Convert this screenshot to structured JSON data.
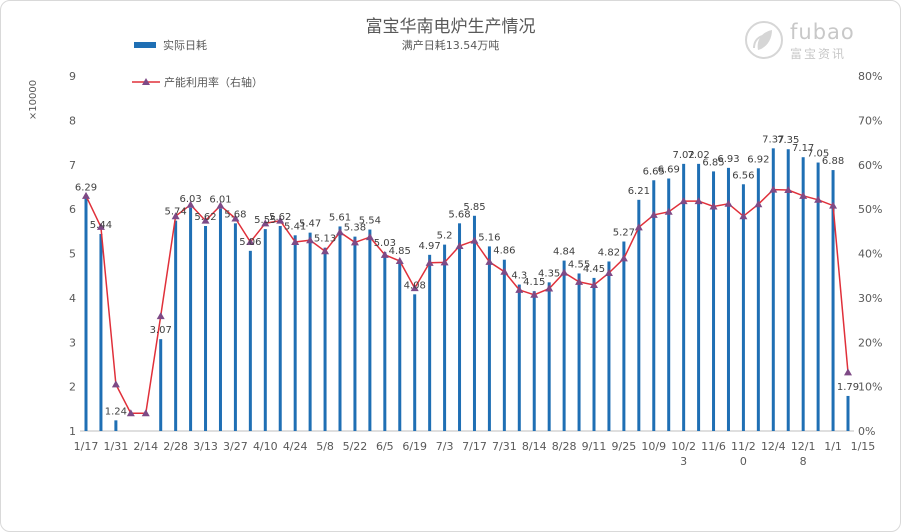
{
  "title": "富宝华南电炉生产情况",
  "subtitle": "满产日耗13.54万吨",
  "legend": {
    "bar": "实际日耗",
    "line": "产能利用率（右轴）"
  },
  "watermark": {
    "brand": "fubao",
    "cn": "富宝资讯"
  },
  "colors": {
    "bar": "#1f6fb4",
    "line": "#e0303a",
    "marker": "#7e4a86",
    "text": "#595959",
    "axis": "#bfbfbf"
  },
  "chart_data": {
    "type": "bar+line",
    "title": "富宝华南电炉生产情况",
    "subtitle": "满产日耗13.54万吨",
    "y_unit": "×10000",
    "y_left": {
      "ylim": [
        1,
        9
      ],
      "ticks": [
        "1",
        "2",
        "3",
        "4",
        "5",
        "6",
        "7",
        "8",
        "9"
      ]
    },
    "y_right": {
      "ylim": [
        0,
        80
      ],
      "ticks": [
        "0%",
        "10%",
        "20%",
        "30%",
        "40%",
        "50%",
        "60%",
        "70%",
        "80%"
      ]
    },
    "x_ticks": [
      "1/17",
      "1/31",
      "2/14",
      "2/28",
      "3/13",
      "3/27",
      "4/10",
      "4/24",
      "5/8",
      "5/22",
      "6/5",
      "6/19",
      "7/3",
      "7/17",
      "7/31",
      "8/14",
      "8/28",
      "9/11",
      "9/25",
      "10/9",
      "10/23",
      "11/6",
      "11/20",
      "12/4",
      "12/18",
      "1/1",
      "1/15"
    ],
    "legend_position": "top-left",
    "grid": false,
    "series": [
      {
        "name": "实际日耗",
        "type": "bar",
        "axis": "left",
        "values": [
          6.29,
          5.44,
          1.24,
          null,
          null,
          3.07,
          5.74,
          6.03,
          5.62,
          6.01,
          5.68,
          5.06,
          5.55,
          5.62,
          5.41,
          5.47,
          5.13,
          5.61,
          5.38,
          5.54,
          5.03,
          4.85,
          4.08,
          4.97,
          5.2,
          5.68,
          5.85,
          5.16,
          4.86,
          4.3,
          4.15,
          4.35,
          4.84,
          4.55,
          4.45,
          4.82,
          5.27,
          6.21,
          6.65,
          6.69,
          7.02,
          7.02,
          6.85,
          6.93,
          6.56,
          6.92,
          7.37,
          7.35,
          7.17,
          7.05,
          6.88,
          1.79
        ],
        "labels": [
          "6.29",
          "5.44",
          "1.24",
          "",
          "",
          "3.07",
          "5.74",
          "6.03",
          "5.62",
          "6.01",
          "5.68",
          "5.06",
          "5.55",
          "5.62",
          "5.41",
          "5.47",
          "5.13",
          "5.61",
          "5.38",
          "5.54",
          "5.03",
          "4.85",
          "4.08",
          "4.97",
          "5.2",
          "5.68",
          "5.85",
          "5.16",
          "4.86",
          "4.3",
          "4.15",
          "4.35",
          "4.84",
          "4.55",
          "4.45",
          "4.82",
          "5.27",
          "6.21",
          "6.65",
          "6.69",
          "7.02",
          "7.02",
          "6.85",
          "6.93",
          "6.56",
          "6.92",
          "7.37",
          "7.35",
          "7.17",
          "7.05",
          "6.88",
          "1.79"
        ]
      },
      {
        "name": "产能利用率（右轴）",
        "type": "line",
        "axis": "right",
        "values": [
          53.0,
          46.0,
          10.5,
          4.0,
          4.0,
          25.9,
          48.4,
          51.0,
          47.4,
          50.8,
          47.9,
          42.6,
          46.8,
          47.4,
          42.6,
          43.0,
          40.5,
          44.8,
          42.5,
          43.7,
          39.7,
          38.3,
          32.2,
          37.9,
          38.0,
          41.7,
          42.9,
          38.1,
          35.9,
          31.8,
          30.7,
          32.1,
          35.7,
          33.6,
          32.9,
          35.6,
          38.9,
          45.9,
          48.7,
          49.4,
          51.8,
          51.8,
          50.6,
          51.2,
          48.4,
          51.1,
          54.4,
          54.3,
          53.0,
          52.1,
          50.8,
          13.2
        ]
      }
    ]
  }
}
